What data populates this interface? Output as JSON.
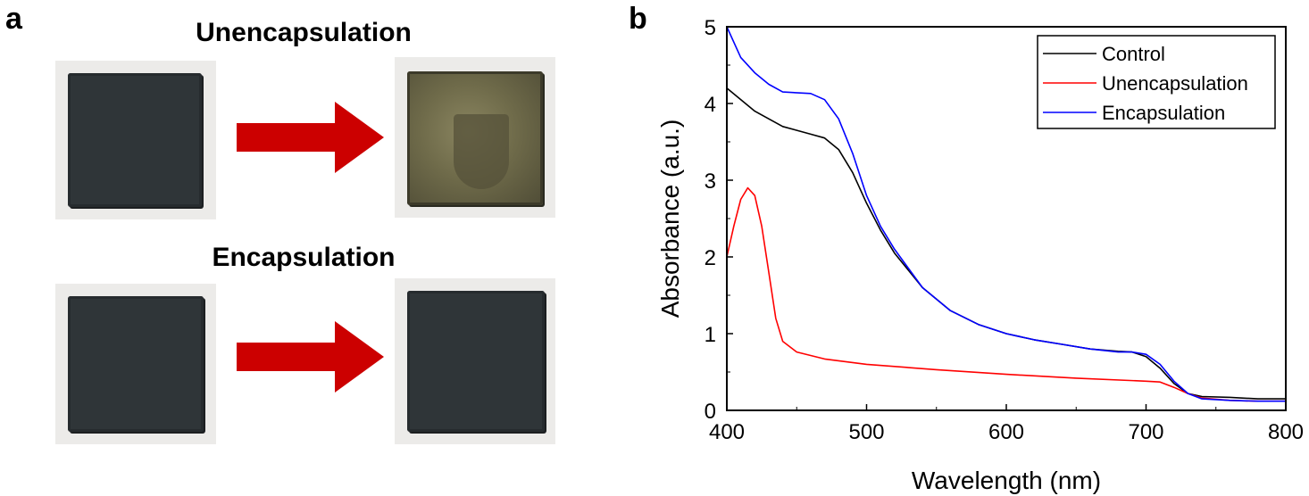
{
  "panel_a": {
    "label": "a",
    "rows": [
      {
        "title": "Unencapsulation",
        "before": "fresh",
        "after": "degraded"
      },
      {
        "title": "Encapsulation",
        "before": "fresh",
        "after": "fresh"
      }
    ],
    "colors": {
      "arrow": "#cc0000",
      "sample": "#2f3538",
      "degraded": "#6f6b4a"
    }
  },
  "panel_b": {
    "label": "b"
  },
  "chart_data": {
    "type": "line",
    "title": "",
    "xlabel": "Wavelength (nm)",
    "ylabel": "Absorbance (a.u.)",
    "xlim": [
      400,
      800
    ],
    "ylim": [
      0,
      5
    ],
    "xticks": [
      400,
      500,
      600,
      700,
      800
    ],
    "yticks": [
      0,
      1,
      2,
      3,
      4,
      5
    ],
    "legend_position": "top-right",
    "grid": false,
    "series": [
      {
        "name": "Control",
        "color": "#000000",
        "points": [
          [
            400,
            4.2
          ],
          [
            420,
            3.9
          ],
          [
            440,
            3.7
          ],
          [
            460,
            3.6
          ],
          [
            470,
            3.55
          ],
          [
            480,
            3.4
          ],
          [
            490,
            3.1
          ],
          [
            500,
            2.7
          ],
          [
            510,
            2.35
          ],
          [
            520,
            2.05
          ],
          [
            540,
            1.6
          ],
          [
            560,
            1.3
          ],
          [
            580,
            1.12
          ],
          [
            600,
            1.0
          ],
          [
            620,
            0.92
          ],
          [
            640,
            0.86
          ],
          [
            660,
            0.8
          ],
          [
            680,
            0.77
          ],
          [
            690,
            0.76
          ],
          [
            700,
            0.7
          ],
          [
            710,
            0.55
          ],
          [
            720,
            0.35
          ],
          [
            730,
            0.22
          ],
          [
            740,
            0.18
          ],
          [
            760,
            0.17
          ],
          [
            780,
            0.15
          ],
          [
            800,
            0.15
          ]
        ]
      },
      {
        "name": "Unencapsulation",
        "color": "#ff0000",
        "points": [
          [
            400,
            2.0
          ],
          [
            405,
            2.4
          ],
          [
            410,
            2.75
          ],
          [
            415,
            2.9
          ],
          [
            420,
            2.8
          ],
          [
            425,
            2.4
          ],
          [
            430,
            1.8
          ],
          [
            435,
            1.2
          ],
          [
            440,
            0.9
          ],
          [
            450,
            0.76
          ],
          [
            470,
            0.67
          ],
          [
            500,
            0.6
          ],
          [
            550,
            0.53
          ],
          [
            600,
            0.47
          ],
          [
            650,
            0.42
          ],
          [
            700,
            0.38
          ],
          [
            710,
            0.37
          ],
          [
            720,
            0.3
          ],
          [
            730,
            0.22
          ],
          [
            740,
            0.16
          ],
          [
            760,
            0.13
          ],
          [
            780,
            0.12
          ],
          [
            800,
            0.12
          ]
        ]
      },
      {
        "name": "Encapsulation",
        "color": "#0000ff",
        "points": [
          [
            400,
            5.0
          ],
          [
            410,
            4.6
          ],
          [
            420,
            4.4
          ],
          [
            430,
            4.25
          ],
          [
            440,
            4.15
          ],
          [
            460,
            4.13
          ],
          [
            470,
            4.05
          ],
          [
            480,
            3.8
          ],
          [
            490,
            3.35
          ],
          [
            500,
            2.8
          ],
          [
            510,
            2.4
          ],
          [
            520,
            2.1
          ],
          [
            540,
            1.6
          ],
          [
            560,
            1.3
          ],
          [
            580,
            1.12
          ],
          [
            600,
            1.0
          ],
          [
            620,
            0.92
          ],
          [
            640,
            0.86
          ],
          [
            660,
            0.8
          ],
          [
            680,
            0.76
          ],
          [
            690,
            0.76
          ],
          [
            700,
            0.73
          ],
          [
            710,
            0.6
          ],
          [
            720,
            0.38
          ],
          [
            730,
            0.22
          ],
          [
            740,
            0.15
          ],
          [
            760,
            0.13
          ],
          [
            780,
            0.12
          ],
          [
            800,
            0.12
          ]
        ]
      }
    ]
  }
}
